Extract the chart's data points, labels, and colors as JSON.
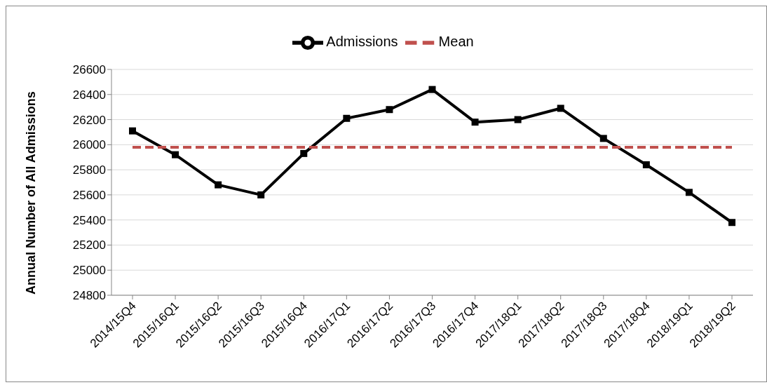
{
  "chart_data": {
    "type": "line",
    "ylabel": "Annual Number of All Admissions",
    "categories": [
      "2014/15Q4",
      "2015/16Q1",
      "2015/16Q2",
      "2015/16Q3",
      "2015/16Q4",
      "2016/17Q1",
      "2016/17Q2",
      "2016/17Q3",
      "2016/17Q4",
      "2017/18Q1",
      "2017/18Q2",
      "2017/18Q3",
      "2017/18Q4",
      "2018/19Q1",
      "2018/19Q2"
    ],
    "series": [
      {
        "name": "Admissions",
        "color": "#000000",
        "marker": "square",
        "line_style": "solid",
        "values": [
          26110,
          25920,
          25680,
          25600,
          25930,
          26210,
          26280,
          26440,
          26180,
          26200,
          26290,
          26050,
          25840,
          25620,
          25380
        ]
      },
      {
        "name": "Mean",
        "color": "#c0504d",
        "marker": "none",
        "line_style": "dashed",
        "values": [
          25980,
          25980,
          25980,
          25980,
          25980,
          25980,
          25980,
          25980,
          25980,
          25980,
          25980,
          25980,
          25980,
          25980,
          25980
        ]
      }
    ],
    "ylim": [
      24800,
      26600
    ],
    "yticks": [
      24800,
      25000,
      25200,
      25400,
      25600,
      25800,
      26000,
      26200,
      26400,
      26600
    ],
    "grid": "y",
    "legend": "top"
  }
}
